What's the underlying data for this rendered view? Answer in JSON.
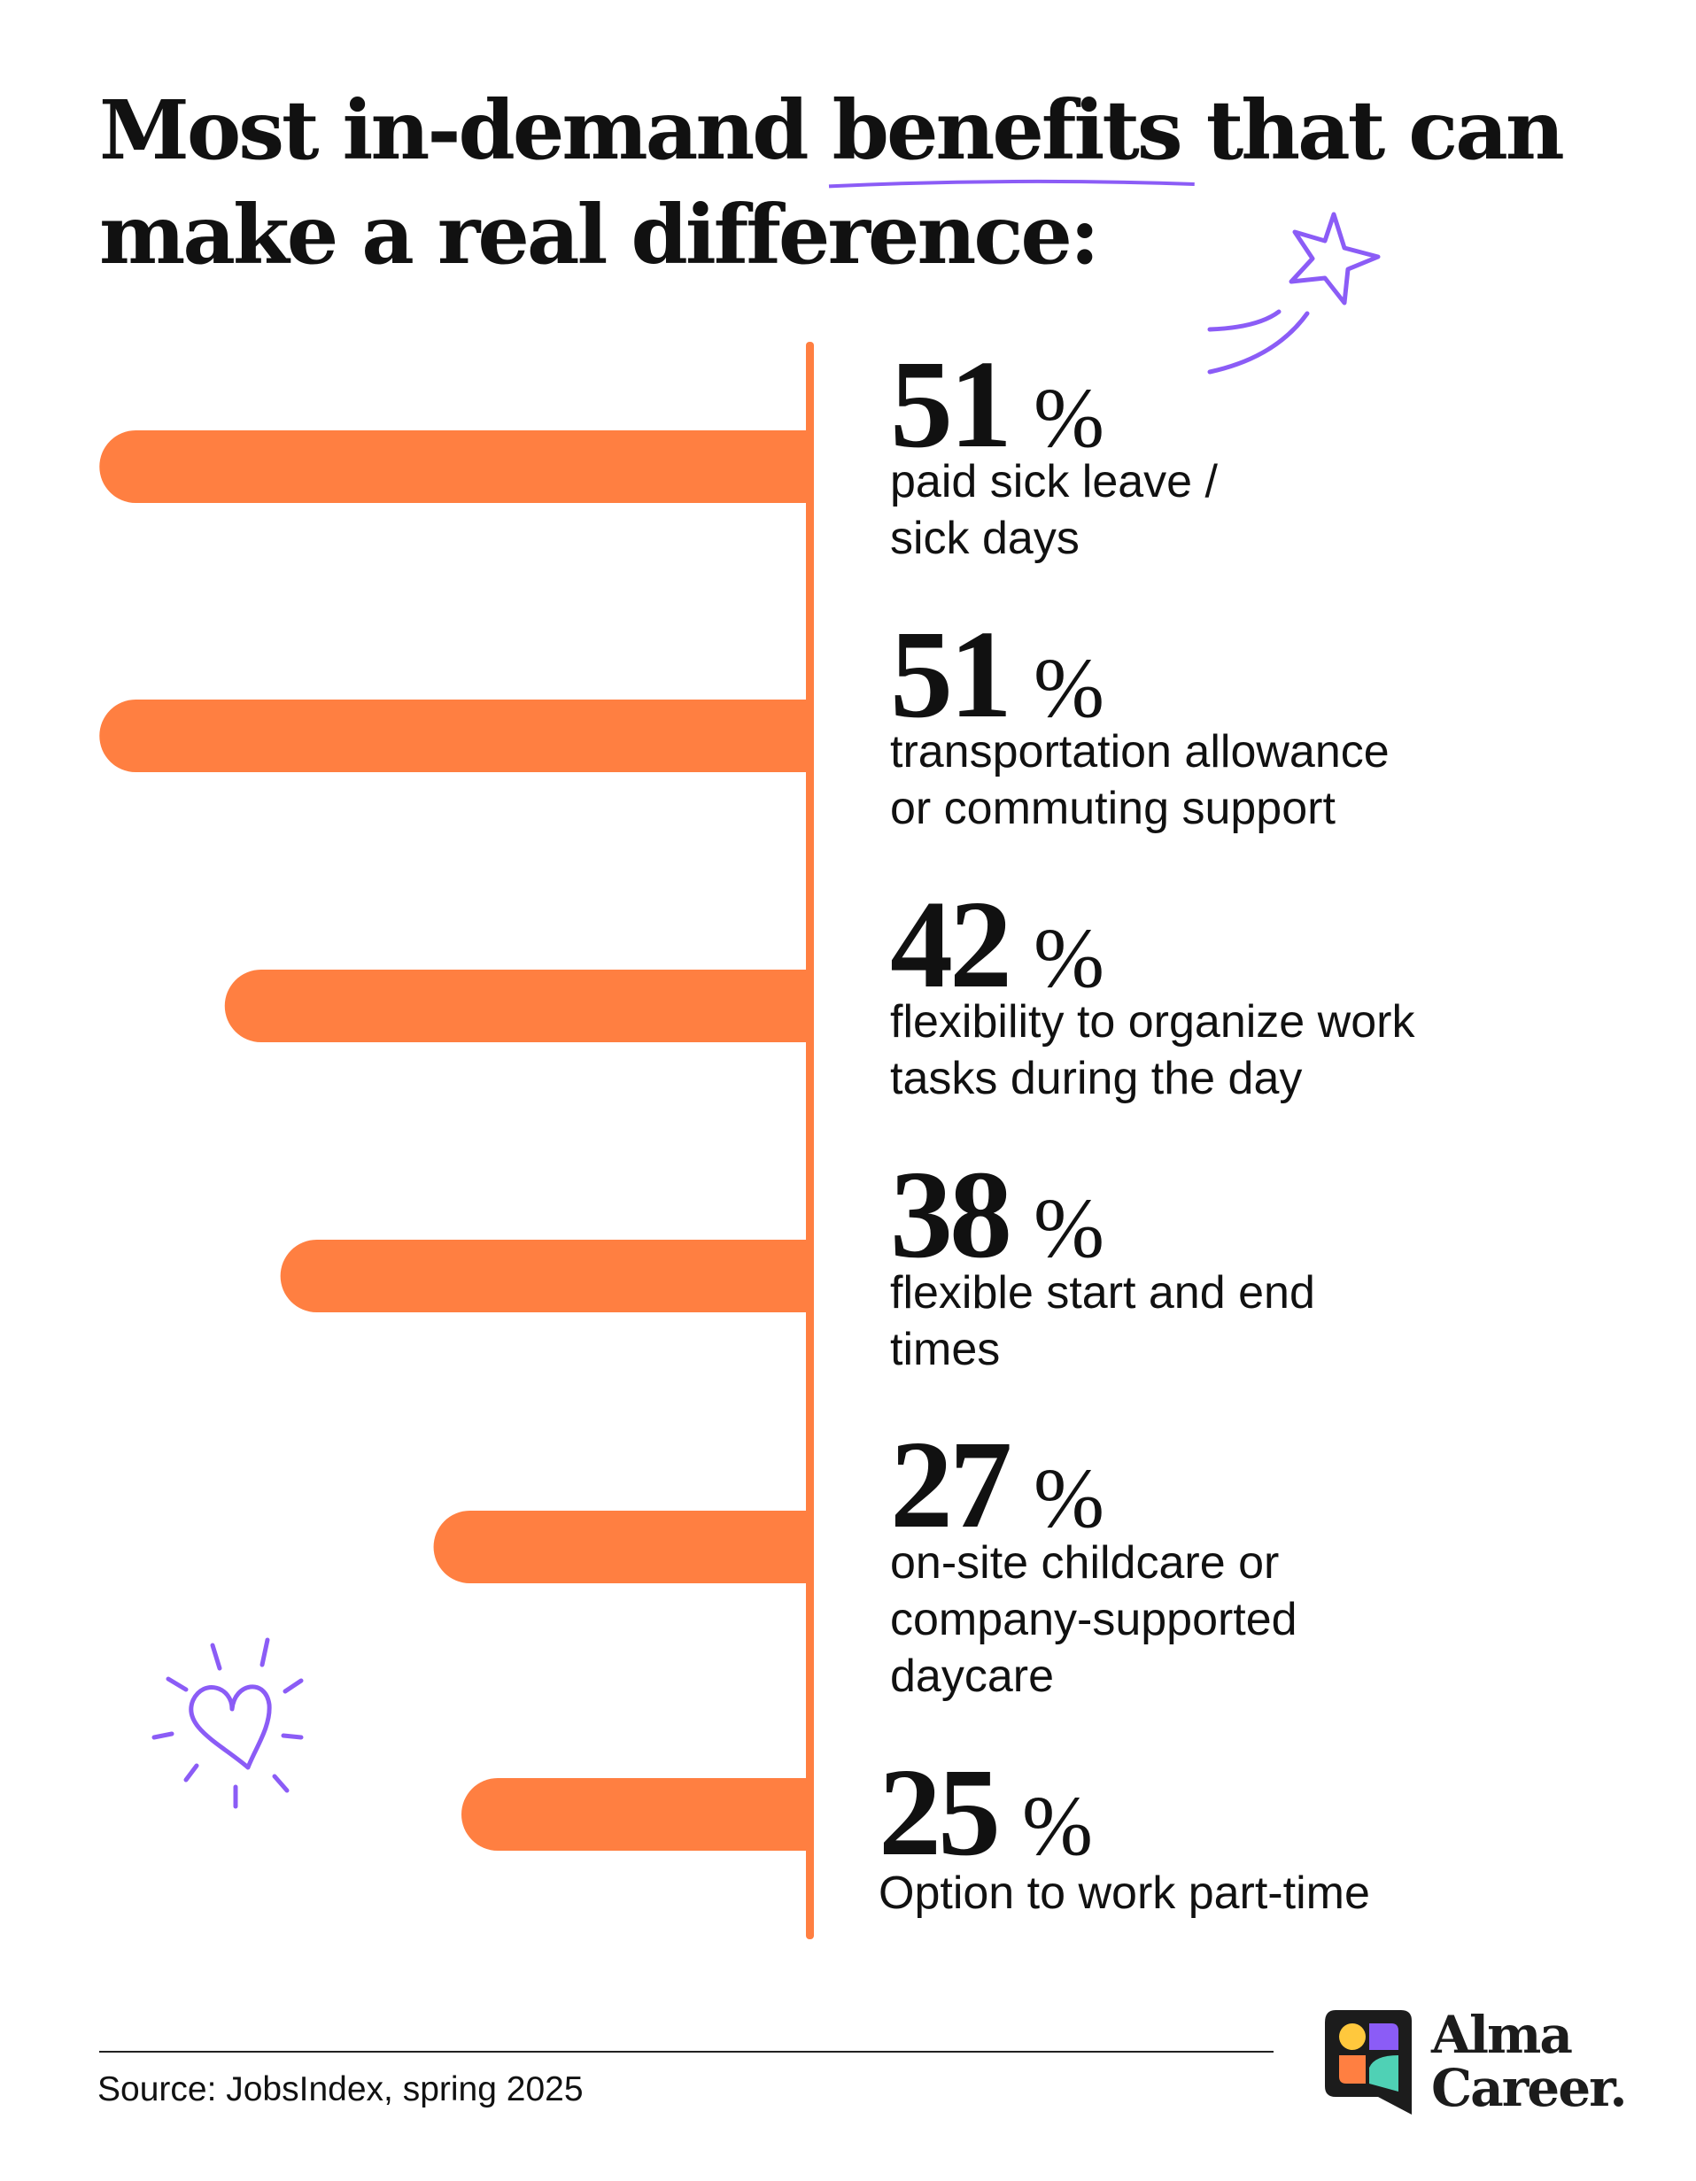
{
  "title": {
    "before": "Most in-demand ",
    "highlight": "benefits",
    "after": " that can",
    "line2": "make a real difference:"
  },
  "chart_data": {
    "type": "bar",
    "orientation": "horizontal",
    "categories": [
      "paid sick leave /\nsick days",
      "transportation allowance\nor commuting support",
      "flexibility to organize work\ntasks during the day",
      "flexible start and end\ntimes",
      "on-site childcare or\ncompany-supported\ndaycare",
      "Option to work part-time"
    ],
    "values": [
      51,
      51,
      42,
      38,
      27,
      25
    ],
    "value_labels": [
      "51",
      "51",
      "42",
      "38",
      "27",
      "25"
    ],
    "unit": "%",
    "bar_color": "#FF7F41",
    "grid": false
  },
  "footer": {
    "source": "Source: JobsIndex,  spring 2025"
  },
  "logo": {
    "text": "Alma\nCareer.",
    "colors": {
      "bg": "#1c1c1c",
      "yellow": "#FFC83D",
      "purple": "#8B5CF6",
      "orange": "#FF7F41",
      "teal": "#4FD1B5"
    }
  },
  "colors": {
    "accent": "#8B5CF6",
    "bar": "#FF7F41",
    "text": "#111111"
  },
  "decorations": [
    "shooting-star-icon",
    "heart-icon"
  ]
}
